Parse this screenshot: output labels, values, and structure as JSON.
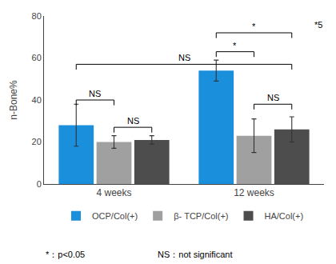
{
  "chart_data": {
    "type": "bar",
    "categories": [
      "4 weeks",
      "12 weeks"
    ],
    "series": [
      {
        "name": "OCP/Col(+)",
        "color": "#1a8fdc",
        "values": [
          28,
          54
        ],
        "errors": [
          10,
          5
        ]
      },
      {
        "name": "β- TCP/Col(+)",
        "color": "#a0a0a0",
        "values": [
          20,
          23
        ],
        "errors": [
          3,
          8
        ]
      },
      {
        "name": "HA/Col(+)",
        "color": "#4d4d4d",
        "values": [
          21,
          26
        ],
        "errors": [
          2,
          6
        ]
      }
    ],
    "ylabel": "n-Bone%",
    "ylim": [
      0,
      80
    ],
    "yticks": [
      0,
      20,
      40,
      60,
      80
    ],
    "grid": false,
    "legend": "bottom",
    "note": "*5",
    "footnotes": [
      "*：p<0.05",
      "NS：not significant"
    ],
    "brackets": [
      {
        "category_from": "4 weeks",
        "series_from": "OCP/Col(+)",
        "category_to": "4 weeks",
        "series_to": "β- TCP/Col(+)",
        "y": 40,
        "text": "NS"
      },
      {
        "category_from": "4 weeks",
        "series_from": "β- TCP/Col(+)",
        "category_to": "4 weeks",
        "series_to": "HA/Col(+)",
        "y": 27,
        "text": "NS"
      },
      {
        "category_from": "4 weeks",
        "series_from": "OCP/Col(+)",
        "category_to": "12 weeks",
        "series_to": "HA/Col(+)",
        "y": 57,
        "text": "NS"
      },
      {
        "category_from": "12 weeks",
        "series_from": "OCP/Col(+)",
        "category_to": "12 weeks",
        "series_to": "β- TCP/Col(+)",
        "y": 63,
        "text": "*"
      },
      {
        "category_from": "12 weeks",
        "series_from": "β- TCP/Col(+)",
        "category_to": "12 weeks",
        "series_to": "HA/Col(+)",
        "y": 38,
        "text": "NS"
      },
      {
        "category_from": "12 weeks",
        "series_from": "OCP/Col(+)",
        "category_to": "12 weeks",
        "series_to": "HA/Col(+)",
        "y": 72,
        "text": "*"
      }
    ]
  }
}
